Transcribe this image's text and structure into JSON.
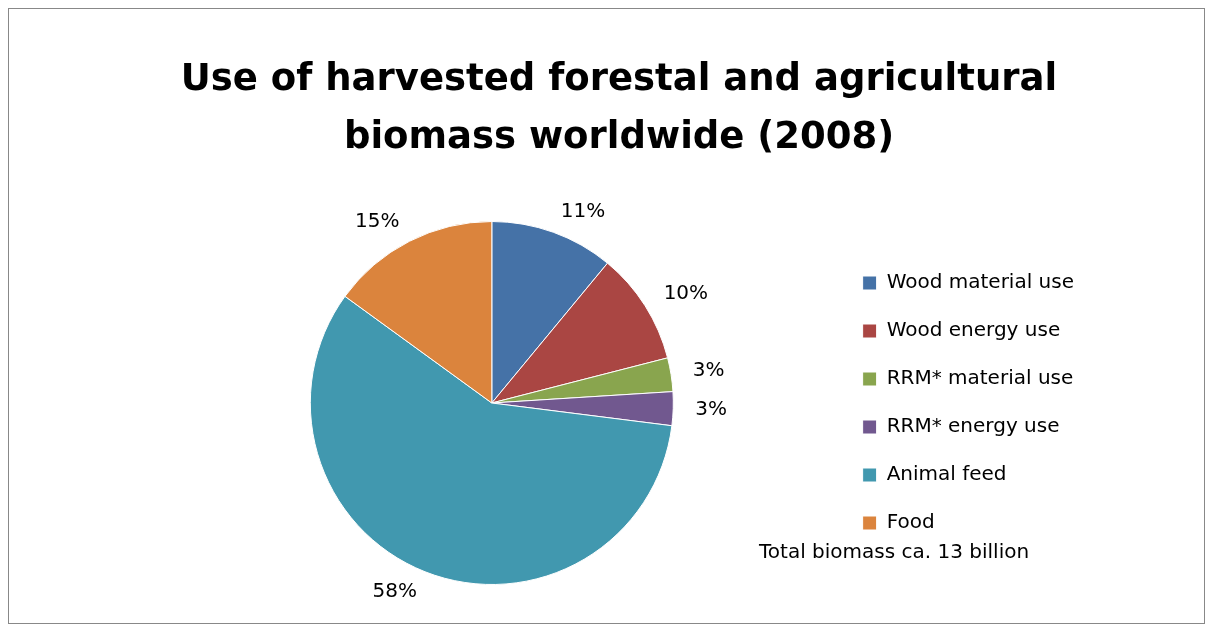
{
  "chart_data": {
    "type": "pie",
    "title": "Use of harvested forestal and agricultural biomass worldwide (2008)",
    "categories": [
      "Wood material use",
      "Wood energy use",
      "RRM* material use",
      "RRM* energy use",
      "Animal feed",
      "Food"
    ],
    "values": [
      11,
      10,
      3,
      3,
      58,
      15
    ],
    "colors": [
      "#4572a7",
      "#aa4643",
      "#89a54e",
      "#71588f",
      "#4198af",
      "#db843d"
    ],
    "value_labels": [
      "11%",
      "10%",
      "3%",
      "3%",
      "58%",
      "15%"
    ],
    "legend": "right",
    "annotations": [
      "Total biomass ca. 13 billion"
    ]
  }
}
